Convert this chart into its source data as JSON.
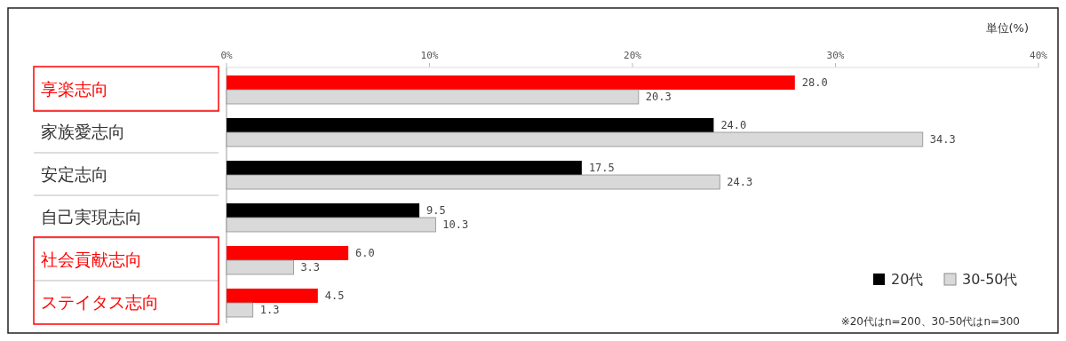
{
  "chart_data": {
    "type": "bar",
    "orientation": "horizontal",
    "categories": [
      "享楽志向",
      "家族愛志向",
      "安定志向",
      "自己実現志向",
      "社会貢献志向",
      "ステイタス志向"
    ],
    "series": [
      {
        "name": "20代",
        "color": "#000000",
        "colors": [
          "#ff0000",
          "#000000",
          "#000000",
          "#000000",
          "#ff0000",
          "#ff0000"
        ],
        "values": [
          28.0,
          24.0,
          17.5,
          9.5,
          6.0,
          4.5
        ],
        "value_labels": [
          "28.0",
          "24.0",
          "17.5",
          "9.5",
          "6.0",
          "4.5"
        ]
      },
      {
        "name": "30-50代",
        "color": "#d9d9d9",
        "values": [
          20.3,
          34.3,
          24.3,
          10.3,
          3.3,
          1.3
        ],
        "value_labels": [
          "20.3",
          "34.3",
          "24.3",
          "10.3",
          "3.3",
          "1.3"
        ]
      }
    ],
    "xlim": [
      0,
      40
    ],
    "xticks": [
      {
        "value": 0,
        "label": "0%"
      },
      {
        "value": 10,
        "label": "10%"
      },
      {
        "value": 20,
        "label": "20%"
      },
      {
        "value": 30,
        "label": "30%"
      },
      {
        "value": 40,
        "label": "40%"
      }
    ],
    "legend": "bottom right",
    "grid": false,
    "annotations": [
      "単位(%)",
      "※20代はn=200、30-50代はn=300"
    ]
  }
}
